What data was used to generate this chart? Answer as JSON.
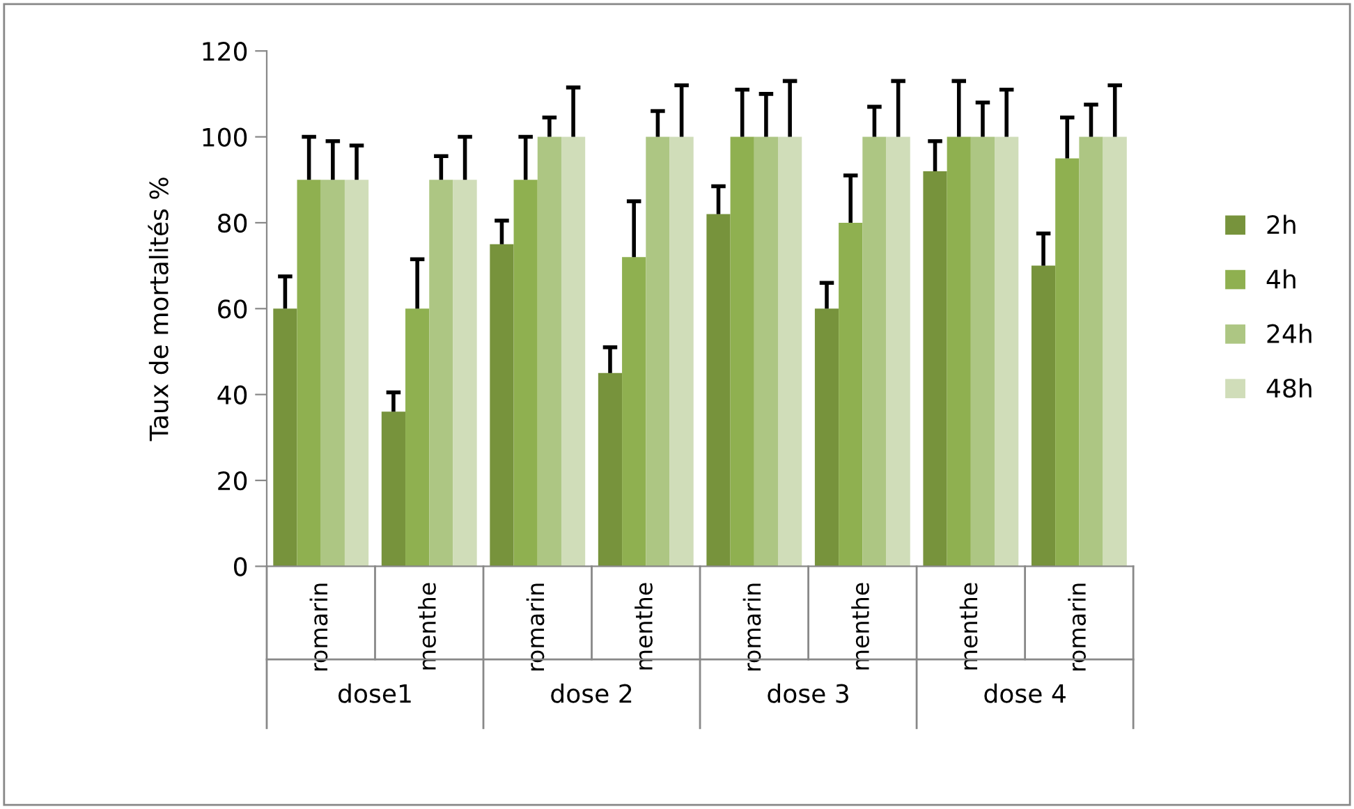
{
  "chart_data": {
    "type": "bar",
    "ylabel": "Taux de mortalités %",
    "categories": [
      "romarin",
      "menthe",
      "romarin",
      "menthe",
      "romarin",
      "menthe",
      "menthe",
      "romarin"
    ],
    "annotations": [
      "dose1",
      "dose 2",
      "dose 3",
      "dose 4"
    ],
    "series": [
      {
        "name": "2h",
        "color": "#77933c",
        "values": [
          60,
          36,
          75,
          45,
          82,
          60,
          92,
          70
        ],
        "errors": [
          [
            60,
            67.5
          ],
          [
            36,
            40.5
          ],
          [
            75,
            80.5
          ],
          [
            45,
            51
          ],
          [
            82,
            88.5
          ],
          [
            60,
            66
          ],
          [
            92,
            99
          ],
          [
            70,
            77.5
          ]
        ]
      },
      {
        "name": "4h",
        "color": "#8fb050",
        "values": [
          90,
          60,
          90,
          72,
          100,
          80,
          100,
          95
        ],
        "errors": [
          [
            90,
            100
          ],
          [
            60,
            71.5
          ],
          [
            90,
            100
          ],
          [
            72,
            85
          ],
          [
            100,
            111
          ],
          [
            80,
            91
          ],
          [
            100,
            113
          ],
          [
            95,
            104.5
          ]
        ]
      },
      {
        "name": "24h",
        "color": "#adc683",
        "values": [
          90,
          90,
          100,
          100,
          100,
          100,
          100,
          100
        ],
        "errors": [
          [
            90,
            99
          ],
          [
            90,
            95.5
          ],
          [
            100,
            104.5
          ],
          [
            100,
            106
          ],
          [
            100,
            110
          ],
          [
            100,
            107
          ],
          [
            100,
            108
          ],
          [
            100,
            107.5
          ]
        ]
      },
      {
        "name": "48h",
        "color": "#d0ddb9",
        "values": [
          90,
          90,
          100,
          100,
          100,
          100,
          100,
          100
        ],
        "errors": [
          [
            90,
            98
          ],
          [
            90,
            100
          ],
          [
            100,
            111.5
          ],
          [
            100,
            112
          ],
          [
            100,
            113
          ],
          [
            100,
            113
          ],
          [
            100,
            111
          ],
          [
            100,
            112
          ]
        ]
      }
    ],
    "ylim": [
      0,
      120
    ],
    "yticks": [
      0,
      20,
      40,
      60,
      80,
      100,
      120
    ],
    "grid": false,
    "legend": "right"
  }
}
